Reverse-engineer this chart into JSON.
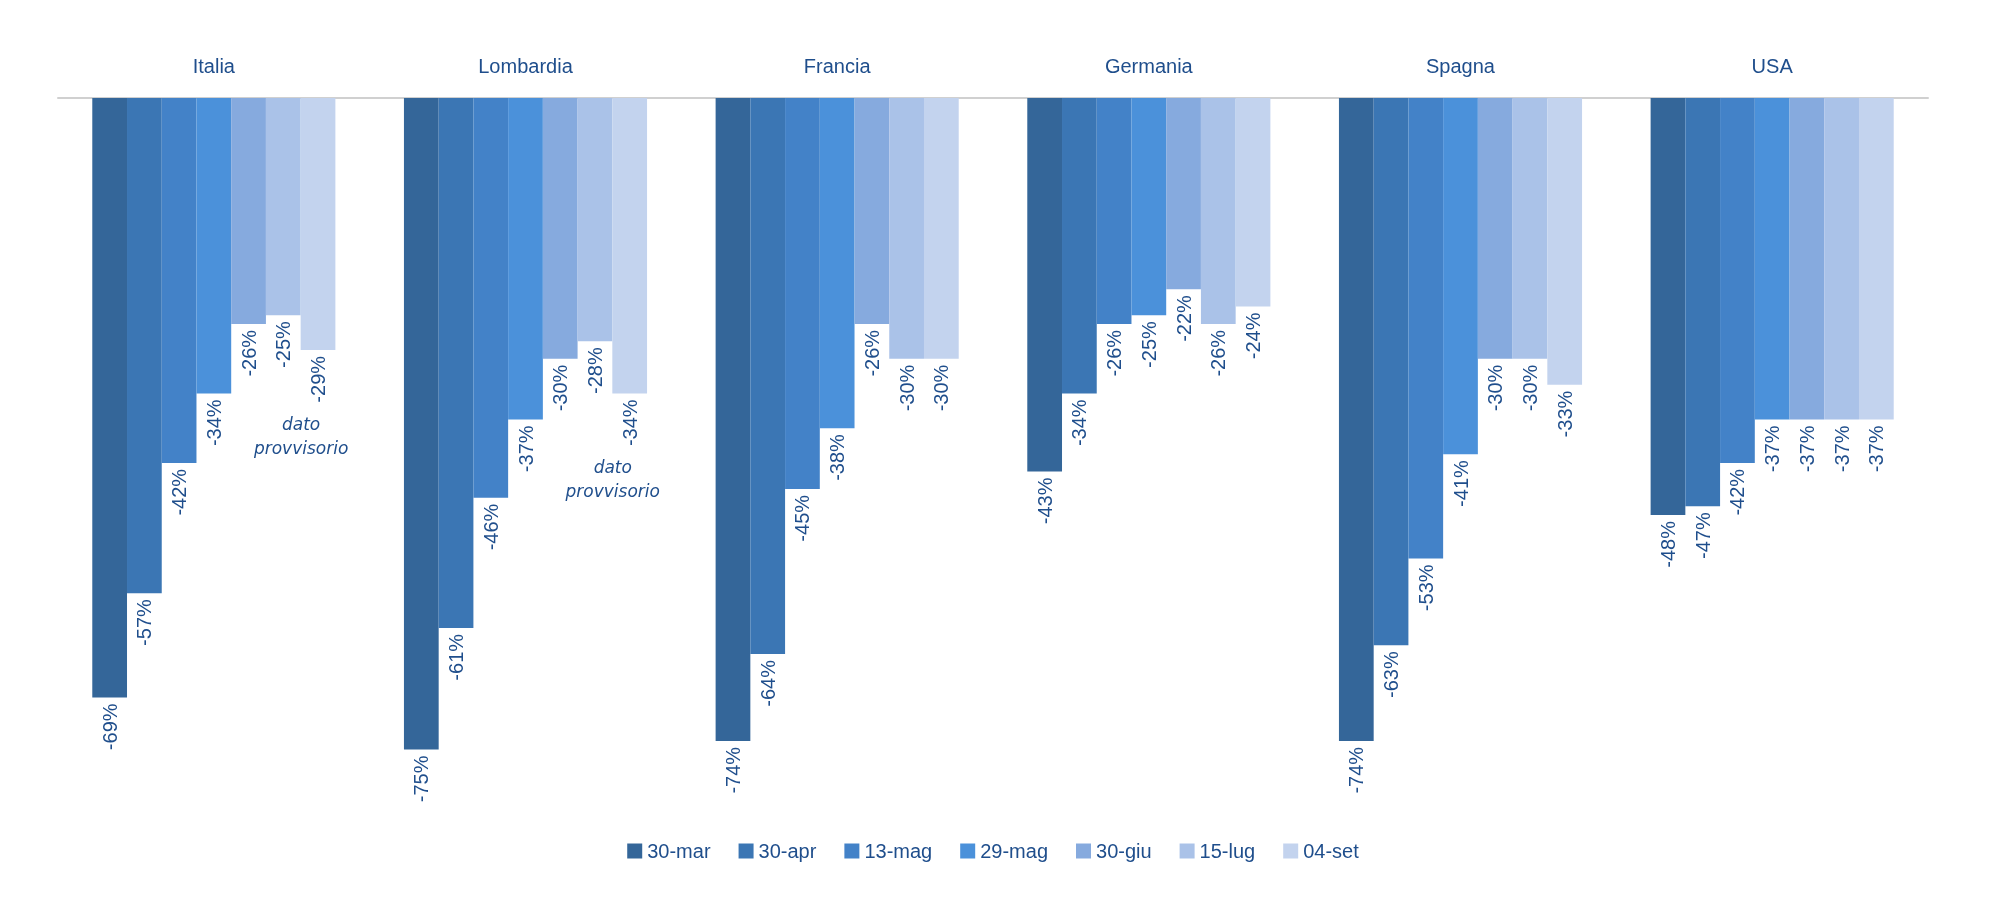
{
  "chart_data": {
    "type": "bar",
    "categories": [
      "Italia",
      "Lombardia",
      "Francia",
      "Germania",
      "Spagna",
      "USA"
    ],
    "series": [
      {
        "name": "30-mar",
        "color": "#346699",
        "values": [
          -69,
          -75,
          -74,
          -43,
          -74,
          -48
        ],
        "value_labels": [
          "-69%",
          "-75%",
          "-74%",
          "-43%",
          "-74%",
          "-48%"
        ]
      },
      {
        "name": "30-apr",
        "color": "#3b76b4",
        "values": [
          -57,
          -61,
          -64,
          -34,
          -63,
          -47
        ],
        "value_labels": [
          "-57%",
          "-61%",
          "-64%",
          "-34%",
          "-63%",
          "-47%"
        ]
      },
      {
        "name": "13-mag",
        "color": "#4382c8",
        "values": [
          -42,
          -46,
          -45,
          -26,
          -53,
          -42
        ],
        "value_labels": [
          "-42%",
          "-46%",
          "-45%",
          "-26%",
          "-53%",
          "-42%"
        ]
      },
      {
        "name": "29-mag",
        "color": "#4b91da",
        "values": [
          -34,
          -37,
          -38,
          -25,
          -41,
          -37
        ],
        "value_labels": [
          "-34%",
          "-37%",
          "-38%",
          "-25%",
          "-41%",
          "-37%"
        ]
      },
      {
        "name": "30-giu",
        "color": "#86aade",
        "values": [
          -26,
          -30,
          -26,
          -22,
          -30,
          -37
        ],
        "value_labels": [
          "-26%",
          "-30%",
          "-26%",
          "-22%",
          "-30%",
          "-37%"
        ]
      },
      {
        "name": "15-lug",
        "color": "#aac2e8",
        "values": [
          -25,
          -28,
          -30,
          -26,
          -30,
          -37
        ],
        "value_labels": [
          "-25%",
          "-28%",
          "-30%",
          "-26%",
          "-30%",
          "-37%"
        ]
      },
      {
        "name": "04-set",
        "color": "#c3d3ee",
        "values": [
          -29,
          -34,
          -30,
          -24,
          -33,
          -37
        ],
        "value_labels": [
          "-29%",
          "-34%",
          "-30%",
          "-24%",
          "-33%",
          "-37%"
        ]
      }
    ],
    "annotations": [
      "dato provvisorio",
      "dato provvisorio"
    ],
    "tick_labels": "x",
    "grid": false,
    "legend": "bottom"
  }
}
